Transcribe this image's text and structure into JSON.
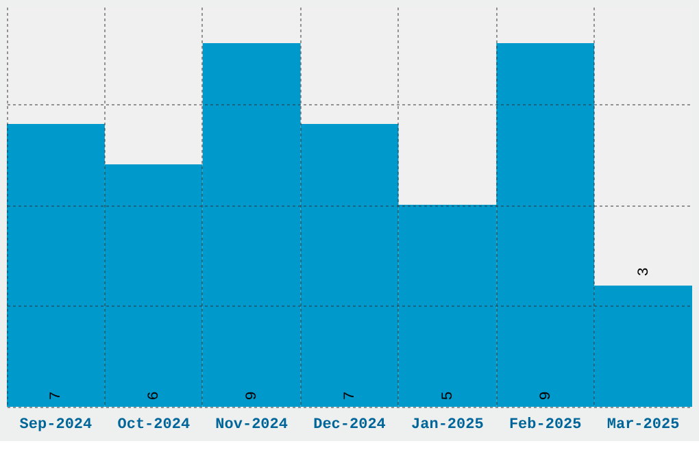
{
  "chart_data": {
    "type": "bar",
    "categories": [
      "Sep-2024",
      "Oct-2024",
      "Nov-2024",
      "Dec-2024",
      "Jan-2025",
      "Feb-2025",
      "Mar-2025"
    ],
    "values": [
      7,
      6,
      9,
      7,
      5,
      9,
      3
    ],
    "color": "#0099cc",
    "data_labels": true,
    "ylim": [
      0,
      9.9
    ],
    "yticks": [
      {
        "value": 0,
        "label": null
      },
      {
        "value": 2.5,
        "label": null
      },
      {
        "value": 5,
        "label": null
      },
      {
        "value": 7.5,
        "label": null
      }
    ],
    "grid": true,
    "tick_labels": "x"
  }
}
